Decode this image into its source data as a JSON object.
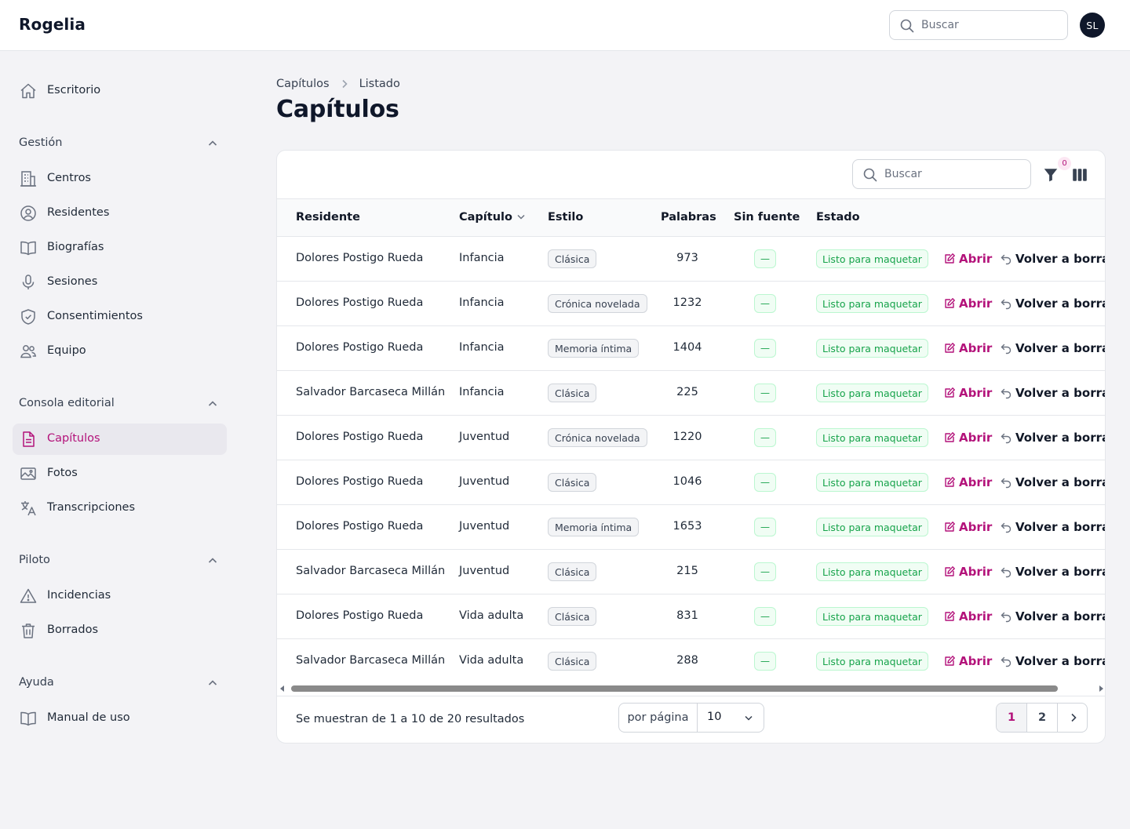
{
  "app": {
    "brand": "Rogelia"
  },
  "topbar": {
    "search_placeholder": "Buscar",
    "avatar_initials": "SL"
  },
  "sidebar": {
    "home": {
      "label": "Escritorio",
      "icon": "home-icon"
    },
    "groups": [
      {
        "label": "Gestión",
        "items": [
          {
            "label": "Centros",
            "icon": "building-icon"
          },
          {
            "label": "Residentes",
            "icon": "user-circle-icon"
          },
          {
            "label": "Biografías",
            "icon": "book-open-icon"
          },
          {
            "label": "Sesiones",
            "icon": "microphone-icon"
          },
          {
            "label": "Consentimientos",
            "icon": "shield-check-icon"
          },
          {
            "label": "Equipo",
            "icon": "users-icon"
          }
        ]
      },
      {
        "label": "Consola editorial",
        "items": [
          {
            "label": "Capítulos",
            "icon": "document-text-icon",
            "active": true
          },
          {
            "label": "Fotos",
            "icon": "photo-icon"
          },
          {
            "label": "Transcripciones",
            "icon": "language-icon"
          }
        ]
      },
      {
        "label": "Piloto",
        "items": [
          {
            "label": "Incidencias",
            "icon": "warning-icon"
          },
          {
            "label": "Borrados",
            "icon": "trash-icon"
          }
        ]
      },
      {
        "label": "Ayuda",
        "items": [
          {
            "label": "Manual de uso",
            "icon": "book-open-icon"
          }
        ]
      }
    ]
  },
  "breadcrumb": {
    "parent": "Capítulos",
    "current": "Listado"
  },
  "page": {
    "title": "Capítulos"
  },
  "table": {
    "search_placeholder": "Buscar",
    "filter_count": "0",
    "columns": {
      "residente": "Residente",
      "capitulo": "Capítulo",
      "estilo": "Estilo",
      "palabras": "Palabras",
      "sin_fuente": "Sin fuente",
      "estado": "Estado"
    },
    "action_open": "Abrir",
    "action_back": "Volver a borrador",
    "rows": [
      {
        "residente": "Dolores Postigo Rueda",
        "capitulo": "Infancia",
        "estilo": "Clásica",
        "palabras": "973",
        "sin_fuente": "—",
        "estado": "Listo para maquetar"
      },
      {
        "residente": "Dolores Postigo Rueda",
        "capitulo": "Infancia",
        "estilo": "Crónica novelada",
        "palabras": "1232",
        "sin_fuente": "—",
        "estado": "Listo para maquetar"
      },
      {
        "residente": "Dolores Postigo Rueda",
        "capitulo": "Infancia",
        "estilo": "Memoria íntima",
        "palabras": "1404",
        "sin_fuente": "—",
        "estado": "Listo para maquetar"
      },
      {
        "residente": "Salvador Barcaseca Millán",
        "capitulo": "Infancia",
        "estilo": "Clásica",
        "palabras": "225",
        "sin_fuente": "—",
        "estado": "Listo para maquetar"
      },
      {
        "residente": "Dolores Postigo Rueda",
        "capitulo": "Juventud",
        "estilo": "Crónica novelada",
        "palabras": "1220",
        "sin_fuente": "—",
        "estado": "Listo para maquetar"
      },
      {
        "residente": "Dolores Postigo Rueda",
        "capitulo": "Juventud",
        "estilo": "Clásica",
        "palabras": "1046",
        "sin_fuente": "—",
        "estado": "Listo para maquetar"
      },
      {
        "residente": "Dolores Postigo Rueda",
        "capitulo": "Juventud",
        "estilo": "Memoria íntima",
        "palabras": "1653",
        "sin_fuente": "—",
        "estado": "Listo para maquetar"
      },
      {
        "residente": "Salvador Barcaseca Millán",
        "capitulo": "Juventud",
        "estilo": "Clásica",
        "palabras": "215",
        "sin_fuente": "—",
        "estado": "Listo para maquetar"
      },
      {
        "residente": "Dolores Postigo Rueda",
        "capitulo": "Vida adulta",
        "estilo": "Clásica",
        "palabras": "831",
        "sin_fuente": "—",
        "estado": "Listo para maquetar"
      },
      {
        "residente": "Salvador Barcaseca Millán",
        "capitulo": "Vida adulta",
        "estilo": "Clásica",
        "palabras": "288",
        "sin_fuente": "—",
        "estado": "Listo para maquetar"
      }
    ]
  },
  "footer": {
    "results_text": "Se muestran de 1 a 10 de 20 resultados",
    "per_page_label": "por página",
    "per_page_value": "10",
    "pages": [
      "1",
      "2"
    ],
    "current_page": "1"
  },
  "colors": {
    "accent": "#b3127a",
    "success": "#16a34a",
    "brand_dark": "#0f172a"
  }
}
